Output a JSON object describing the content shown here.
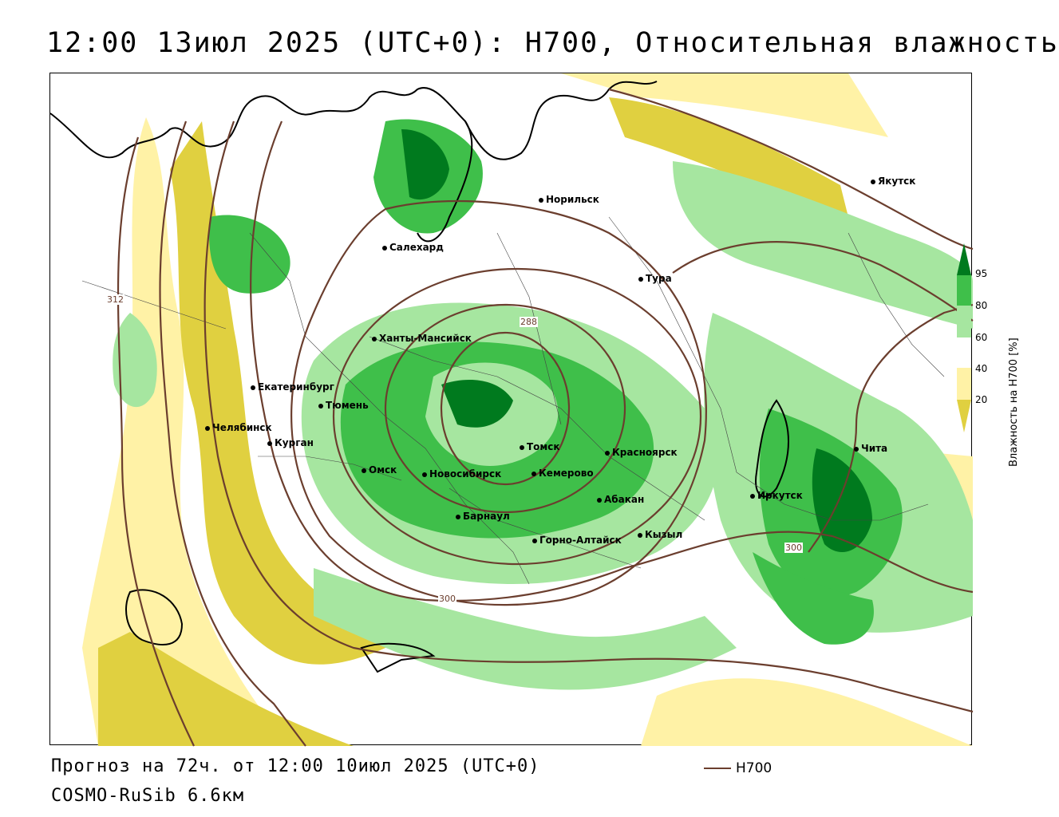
{
  "title": "12:00 13июл 2025 (UTC+0): H700, Относительная влажность",
  "footer": {
    "forecast": "Прогноз на 72ч. от 12:00 10июл 2025 (UTC+0)",
    "model": "COSMO-RuSib 6.6км",
    "legend_label": "H700"
  },
  "colorbar": {
    "label": "Влажность на H700 [%]",
    "ticks": [
      "95",
      "80",
      "60",
      "40",
      "20"
    ],
    "colors": [
      "#007a1e",
      "#3fbf4a",
      "#a6e6a0",
      "#ffffff",
      "#fff2a6",
      "#e0d040"
    ]
  },
  "contour_labels": [
    "312",
    "288",
    "300",
    "300"
  ],
  "cities": [
    {
      "name": "Якутск",
      "icon": "city-dot-icon"
    },
    {
      "name": "Норильск",
      "icon": "city-dot-icon"
    },
    {
      "name": "Салехард",
      "icon": "city-dot-icon"
    },
    {
      "name": "Тура",
      "icon": "city-dot-icon"
    },
    {
      "name": "Ханты-Мансийск",
      "icon": "city-dot-icon"
    },
    {
      "name": "Екатеринбург",
      "icon": "city-dot-icon"
    },
    {
      "name": "Тюмень",
      "icon": "city-dot-icon"
    },
    {
      "name": "Челябинск",
      "icon": "city-dot-icon"
    },
    {
      "name": "Курган",
      "icon": "city-dot-icon"
    },
    {
      "name": "Омск",
      "icon": "city-dot-icon"
    },
    {
      "name": "Новосибирск",
      "icon": "city-dot-icon"
    },
    {
      "name": "Томск",
      "icon": "city-dot-icon"
    },
    {
      "name": "Кемерово",
      "icon": "city-dot-icon"
    },
    {
      "name": "Красноярск",
      "icon": "city-dot-icon"
    },
    {
      "name": "Барнаул",
      "icon": "city-dot-icon"
    },
    {
      "name": "Абакан",
      "icon": "city-dot-icon"
    },
    {
      "name": "Горно-Алтайск",
      "icon": "city-dot-icon"
    },
    {
      "name": "Кызыл",
      "icon": "city-dot-icon"
    },
    {
      "name": "Иркутск",
      "icon": "city-dot-icon"
    },
    {
      "name": "Чита",
      "icon": "city-dot-icon"
    }
  ]
}
